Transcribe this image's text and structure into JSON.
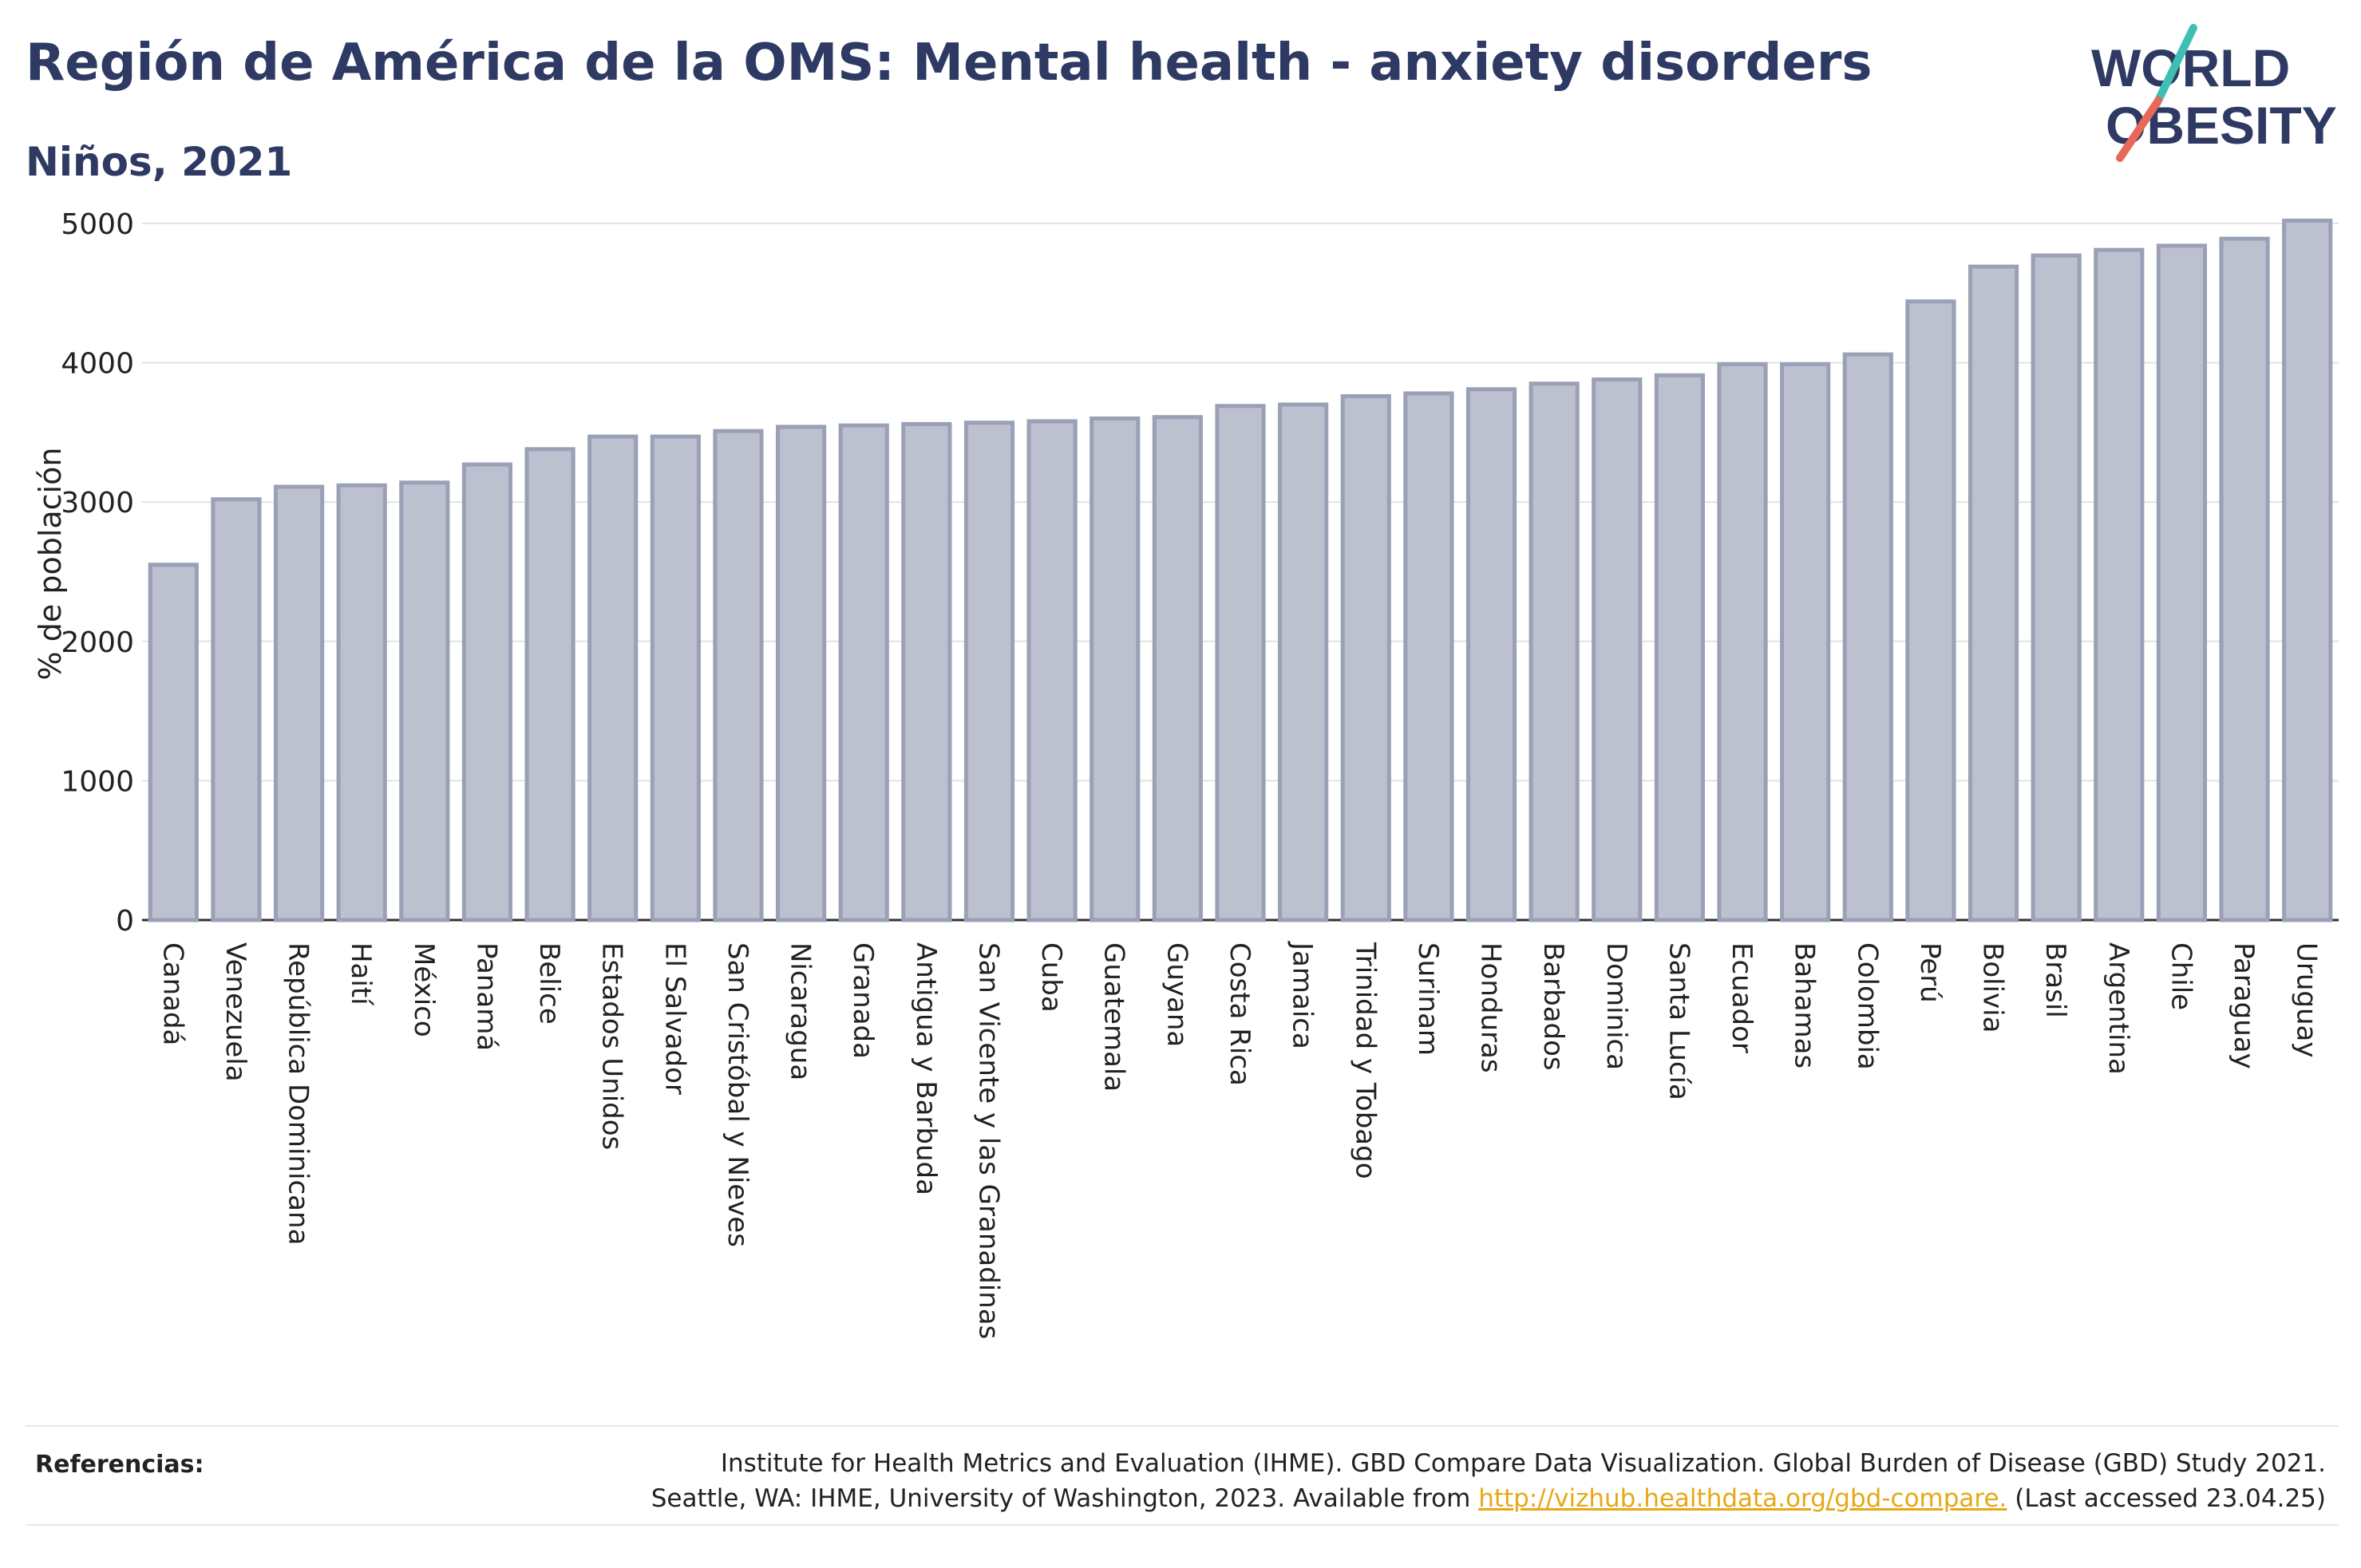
{
  "header": {
    "title": "Región de América de la OMS: Mental health - anxiety disorders",
    "subtitle": "Niños, 2021"
  },
  "logo": {
    "line1": "WORLD",
    "line2": "OBESITY",
    "slash_colors": [
      "#3fbfb3",
      "#e8685a"
    ]
  },
  "chart_data": {
    "type": "bar",
    "title": "",
    "xlabel": "",
    "ylabel": "% de población",
    "ylim": [
      0,
      5000
    ],
    "yticks": [
      0,
      1000,
      2000,
      3000,
      4000,
      5000
    ],
    "grid": true,
    "bar_color": "#bcc0cf",
    "bar_edge_color": "#9aa0b6",
    "categories": [
      "Canadá",
      "Venezuela",
      "República Dominicana",
      "Haití",
      "México",
      "Panamá",
      "Belice",
      "Estados Unidos",
      "El Salvador",
      "San Cristóbal y Nieves",
      "Nicaragua",
      "Granada",
      "Antigua y Barbuda",
      "San Vicente y las Granadinas",
      "Cuba",
      "Guatemala",
      "Guyana",
      "Costa Rica",
      "Jamaica",
      "Trinidad y Tobago",
      "Surinam",
      "Honduras",
      "Barbados",
      "Dominica",
      "Santa Lucía",
      "Ecuador",
      "Bahamas",
      "Colombia",
      "Perú",
      "Bolivia",
      "Brasil",
      "Argentina",
      "Chile",
      "Paraguay",
      "Uruguay"
    ],
    "values": [
      2550,
      3020,
      3110,
      3120,
      3140,
      3270,
      3380,
      3470,
      3470,
      3510,
      3540,
      3550,
      3560,
      3570,
      3580,
      3600,
      3610,
      3690,
      3700,
      3760,
      3780,
      3810,
      3850,
      3880,
      3910,
      3990,
      3990,
      4060,
      4440,
      4690,
      4770,
      4810,
      4840,
      4890,
      5020
    ]
  },
  "references": {
    "label": "Referencias:",
    "line1": "Institute for Health Metrics and Evaluation (IHME). GBD Compare Data Visualization. Global Burden of Disease (GBD) Study 2021.",
    "line2_prefix": "Seattle, WA: IHME, University of Washington, 2023. Available from ",
    "link": "http://vizhub.healthdata.org/gbd-compare.",
    "line2_suffix": " (Last accessed 23.04.25)"
  }
}
